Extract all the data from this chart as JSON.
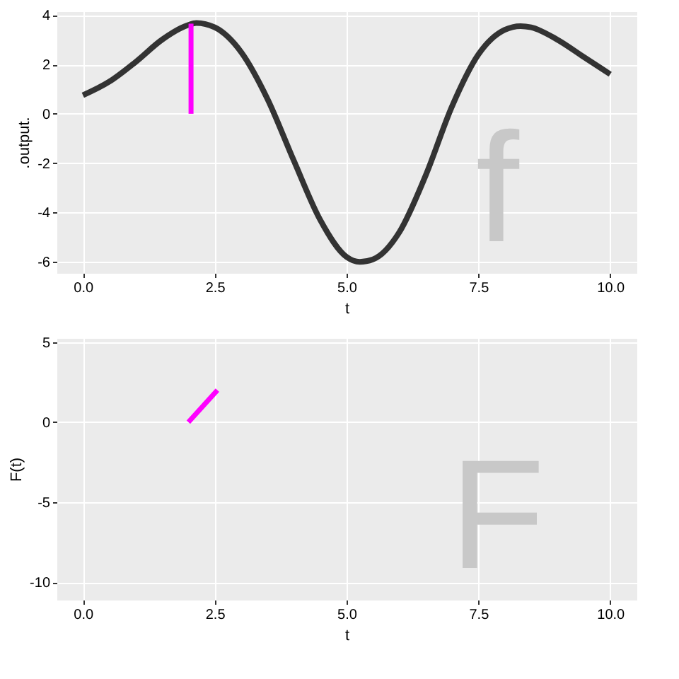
{
  "chart_data": [
    {
      "type": "line",
      "xlabel": "t",
      "ylabel": ".output.",
      "xlim": [
        -0.5,
        10.5
      ],
      "ylim": [
        -6.45,
        4.15
      ],
      "xticks": [
        {
          "value": 0,
          "label": "0.0"
        },
        {
          "value": 2.5,
          "label": "2.5"
        },
        {
          "value": 5,
          "label": "5.0"
        },
        {
          "value": 7.5,
          "label": "7.5"
        },
        {
          "value": 10,
          "label": "10.0"
        }
      ],
      "yticks": [
        -6,
        -4,
        -2,
        0,
        2,
        4
      ],
      "grid": true,
      "annotations": [
        "f"
      ],
      "series": [
        {
          "color": "#333333",
          "x": [
            0,
            0.5,
            1,
            1.5,
            2,
            2.15,
            2.5,
            3,
            3.5,
            4,
            4.5,
            5,
            5.25,
            5.5,
            6,
            6.5,
            7,
            7.5,
            8,
            8.3,
            8.5,
            9,
            9.5,
            10
          ],
          "values": [
            0.75,
            1.3,
            2.1,
            3.0,
            3.6,
            3.68,
            3.5,
            2.5,
            0.6,
            -1.9,
            -4.3,
            -5.8,
            -6.0,
            -5.9,
            -4.8,
            -2.5,
            0.3,
            2.4,
            3.4,
            3.55,
            3.5,
            3.0,
            2.3,
            1.6
          ]
        },
        {
          "color": "#ff00ff",
          "x": [
            2.05,
            2.05
          ],
          "values": [
            0,
            3.65
          ]
        }
      ]
    },
    {
      "type": "line",
      "xlabel": "t",
      "ylabel": "F(t)",
      "xlim": [
        -0.5,
        10.5
      ],
      "ylim": [
        -11.1,
        5.25
      ],
      "xticks": [
        {
          "value": 0,
          "label": "0.0"
        },
        {
          "value": 2.5,
          "label": "2.5"
        },
        {
          "value": 5,
          "label": "5.0"
        },
        {
          "value": 7.5,
          "label": "7.5"
        },
        {
          "value": 10,
          "label": "10.0"
        }
      ],
      "yticks": [
        -10,
        -5,
        0,
        5
      ],
      "grid": true,
      "annotations": [
        "F"
      ],
      "series": [
        {
          "color": "#ff00ff",
          "x": [
            2,
            2.55
          ],
          "values": [
            0,
            2
          ]
        }
      ]
    }
  ]
}
